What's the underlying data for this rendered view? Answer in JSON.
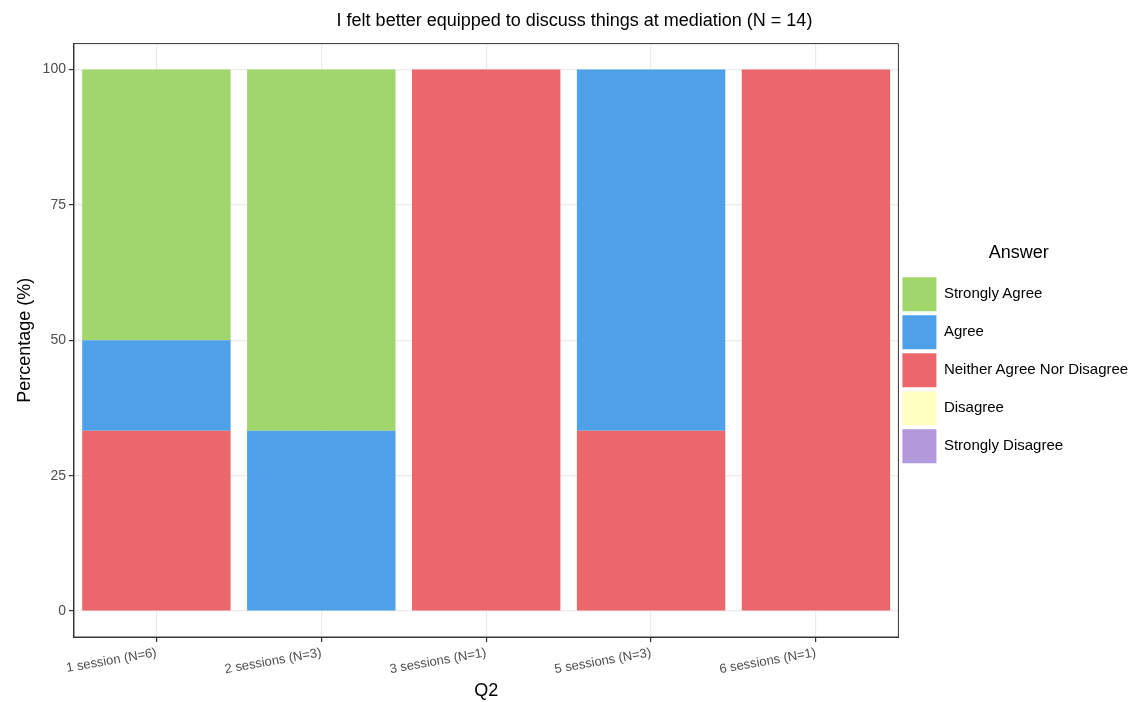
{
  "chart_data": {
    "type": "bar",
    "title": "I felt better equipped to discuss things at mediation (N = 14)",
    "xlabel": "Q2",
    "ylabel": "Percentage (%)",
    "legend_title": "Answer",
    "categories": [
      "1 session (N=6)",
      "2 sessions (N=3)",
      "3 sessions (N=1)",
      "5 sessions (N=3)",
      "6 sessions (N=1)"
    ],
    "stacked": true,
    "series": [
      {
        "name": "Strongly Disagree",
        "color": "#b199dc",
        "values": [
          0,
          0,
          0,
          0,
          0
        ]
      },
      {
        "name": "Disagree",
        "color": "#ffffbf",
        "values": [
          0,
          0,
          0,
          0,
          0
        ]
      },
      {
        "name": "Neither Agree Nor Disagree",
        "color": "#eb676b",
        "values": [
          33.3,
          0,
          100,
          33.3,
          100
        ]
      },
      {
        "name": "Agree",
        "color": "#4ea1e8",
        "values": [
          16.7,
          33.3,
          0,
          66.7,
          0
        ]
      },
      {
        "name": "Strongly Agree",
        "color": "#a0d66b",
        "values": [
          50,
          66.7,
          0,
          0,
          0
        ]
      }
    ],
    "ylim": [
      -4.8,
      104.8
    ],
    "yticks": [
      0,
      25,
      50,
      75,
      100
    ],
    "grid": true,
    "legend": "right"
  }
}
